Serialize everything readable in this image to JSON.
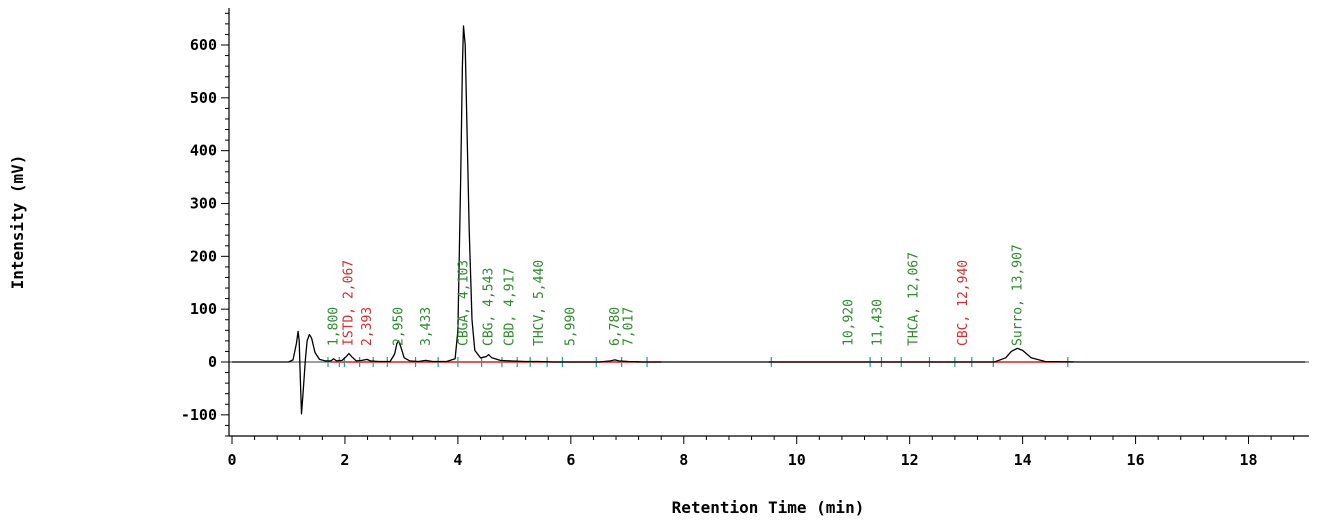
{
  "chart_data": {
    "type": "line",
    "xlabel": "Retention Time (min)",
    "ylabel": "Intensity (mV)",
    "xlim": [
      0,
      19
    ],
    "ylim": [
      -150,
      680
    ],
    "x_ticks": [
      0,
      2,
      4,
      6,
      8,
      10,
      12,
      14,
      16,
      18
    ],
    "y_ticks": [
      -100,
      0,
      100,
      200,
      300,
      400,
      500,
      600
    ],
    "grid": false,
    "colors": {
      "trace": "#000000",
      "baseline": "#e8191f",
      "identified": "#2e8b2e",
      "reference": "#d92b2b",
      "marker": "#17a589"
    },
    "trace": [
      [
        0.0,
        0
      ],
      [
        1.0,
        0
      ],
      [
        1.08,
        4
      ],
      [
        1.14,
        35
      ],
      [
        1.17,
        58
      ],
      [
        1.19,
        40
      ],
      [
        1.21,
        -30
      ],
      [
        1.23,
        -98
      ],
      [
        1.26,
        -55
      ],
      [
        1.3,
        5
      ],
      [
        1.33,
        40
      ],
      [
        1.37,
        52
      ],
      [
        1.41,
        45
      ],
      [
        1.47,
        18
      ],
      [
        1.55,
        5
      ],
      [
        1.65,
        2
      ],
      [
        1.75,
        2
      ],
      [
        1.8,
        6
      ],
      [
        1.85,
        2
      ],
      [
        1.95,
        3
      ],
      [
        2.02,
        10
      ],
      [
        2.07,
        16
      ],
      [
        2.12,
        10
      ],
      [
        2.2,
        2
      ],
      [
        2.3,
        3
      ],
      [
        2.39,
        5
      ],
      [
        2.45,
        2
      ],
      [
        2.6,
        1
      ],
      [
        2.8,
        1
      ],
      [
        2.88,
        15
      ],
      [
        2.92,
        35
      ],
      [
        2.95,
        40
      ],
      [
        2.99,
        28
      ],
      [
        3.05,
        8
      ],
      [
        3.15,
        2
      ],
      [
        3.3,
        1
      ],
      [
        3.43,
        3
      ],
      [
        3.55,
        1
      ],
      [
        3.8,
        1
      ],
      [
        3.95,
        6
      ],
      [
        4.0,
        60
      ],
      [
        4.05,
        350
      ],
      [
        4.08,
        560
      ],
      [
        4.1,
        636
      ],
      [
        4.13,
        600
      ],
      [
        4.16,
        450
      ],
      [
        4.2,
        250
      ],
      [
        4.25,
        80
      ],
      [
        4.3,
        22
      ],
      [
        4.4,
        8
      ],
      [
        4.5,
        10
      ],
      [
        4.543,
        14
      ],
      [
        4.6,
        8
      ],
      [
        4.75,
        3
      ],
      [
        4.917,
        2
      ],
      [
        5.2,
        1
      ],
      [
        5.44,
        1
      ],
      [
        5.7,
        0
      ],
      [
        6.0,
        0
      ],
      [
        6.5,
        0
      ],
      [
        6.7,
        2
      ],
      [
        6.78,
        4
      ],
      [
        6.85,
        2
      ],
      [
        7.017,
        1
      ],
      [
        7.3,
        0
      ],
      [
        9.0,
        0
      ],
      [
        10.92,
        0
      ],
      [
        11.43,
        0
      ],
      [
        12.07,
        0
      ],
      [
        12.94,
        0
      ],
      [
        13.5,
        0
      ],
      [
        13.7,
        8
      ],
      [
        13.8,
        20
      ],
      [
        13.907,
        26
      ],
      [
        14.0,
        22
      ],
      [
        14.15,
        8
      ],
      [
        14.4,
        1
      ],
      [
        15.0,
        0
      ],
      [
        19.0,
        0
      ]
    ],
    "baseline_segments": [
      [
        1.75,
        7.6
      ],
      [
        9.5,
        14.9
      ]
    ],
    "peaks": [
      {
        "text": "1,800",
        "x": 1.8,
        "color": "identified"
      },
      {
        "text": "ISTD, 2,067",
        "x": 2.067,
        "color": "reference"
      },
      {
        "text": "2,393",
        "x": 2.393,
        "color": "reference"
      },
      {
        "text": "2,950",
        "x": 2.95,
        "color": "identified"
      },
      {
        "text": "3,433",
        "x": 3.433,
        "color": "identified"
      },
      {
        "text": "CBGA, 4,103",
        "x": 4.103,
        "color": "identified"
      },
      {
        "text": "CBG, 4,543",
        "x": 4.543,
        "color": "identified"
      },
      {
        "text": "CBD, 4,917",
        "x": 4.917,
        "color": "identified"
      },
      {
        "text": "THCV, 5,440",
        "x": 5.44,
        "color": "identified"
      },
      {
        "text": "5,990",
        "x": 5.99,
        "color": "identified"
      },
      {
        "text": "6,780",
        "x": 6.78,
        "color": "identified"
      },
      {
        "text": "7,017",
        "x": 7.017,
        "color": "identified"
      },
      {
        "text": "10,920",
        "x": 10.92,
        "color": "identified"
      },
      {
        "text": "11,430",
        "x": 11.43,
        "color": "identified"
      },
      {
        "text": "THCA, 12,067",
        "x": 12.067,
        "color": "identified"
      },
      {
        "text": "CBC, 12,940",
        "x": 12.94,
        "color": "reference"
      },
      {
        "text": "Surro, 13,907",
        "x": 13.907,
        "color": "identified"
      }
    ],
    "integration_marks": [
      1.7,
      1.9,
      1.99,
      2.26,
      2.5,
      2.75,
      3.25,
      3.65,
      4.0,
      4.42,
      4.78,
      5.05,
      5.28,
      5.58,
      5.85,
      6.45,
      6.9,
      7.35,
      9.55,
      11.3,
      11.5,
      11.85,
      12.35,
      12.8,
      13.1,
      13.48,
      14.8
    ]
  }
}
